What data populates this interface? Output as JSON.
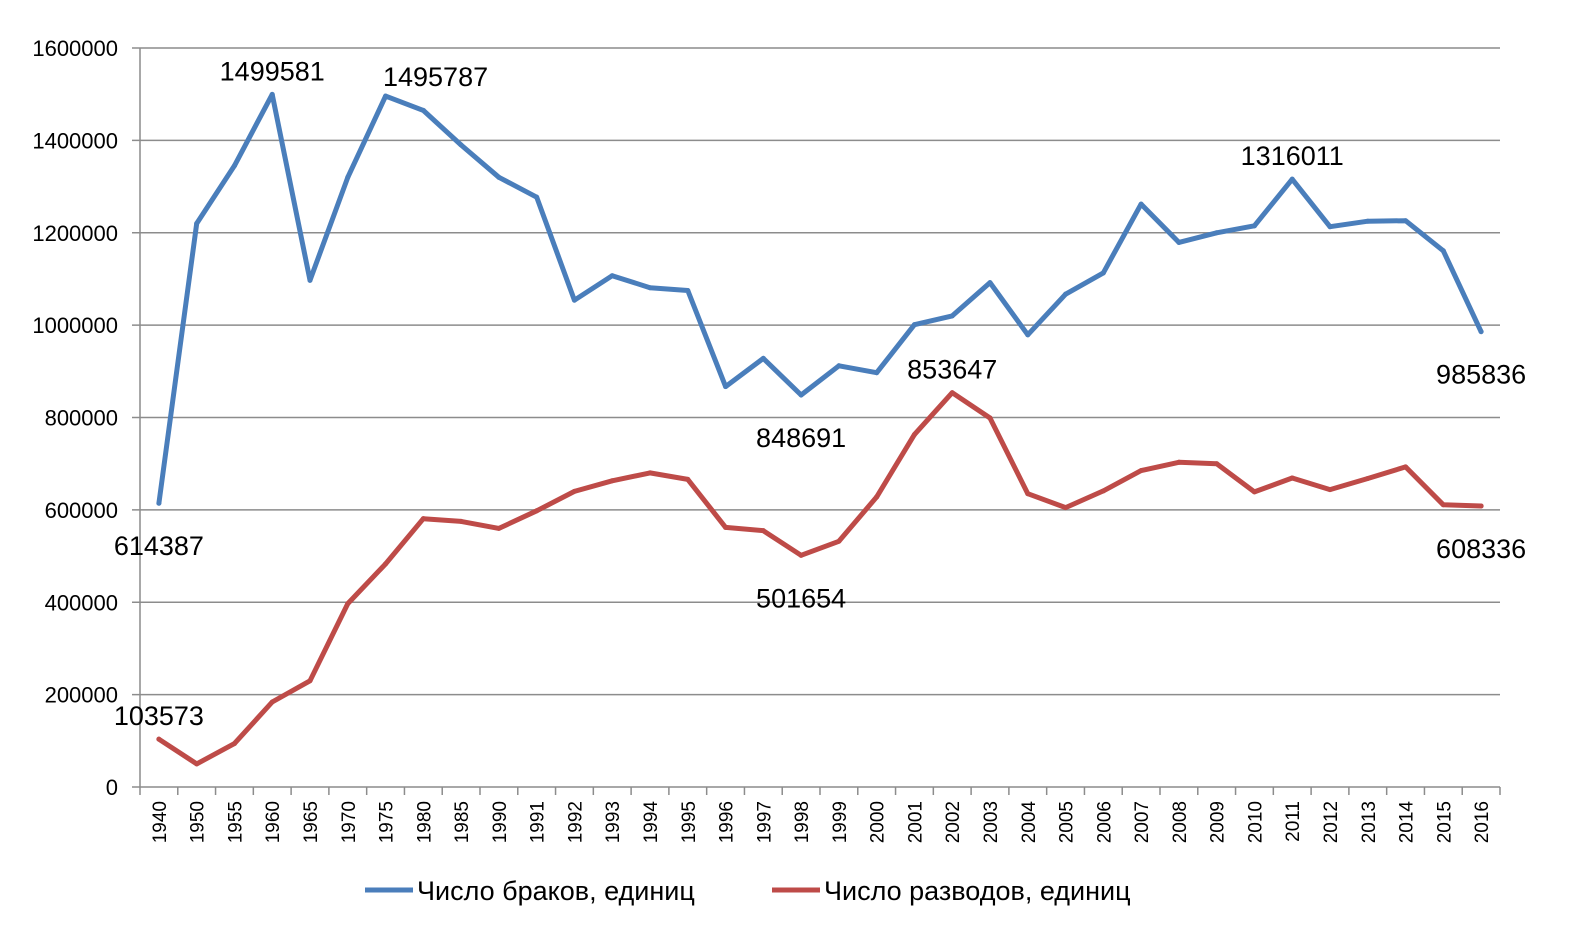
{
  "chart_data": {
    "type": "line",
    "title": "",
    "xlabel": "",
    "ylabel": "",
    "ylim": [
      0,
      1600000
    ],
    "yticks": [
      "0",
      "200000",
      "400000",
      "600000",
      "800000",
      "1000000",
      "1200000",
      "1400000",
      "1600000"
    ],
    "grid": "horizontal",
    "legend_position": "bottom",
    "categories": [
      "1940",
      "1950",
      "1955",
      "1960",
      "1965",
      "1970",
      "1975",
      "1980",
      "1985",
      "1990",
      "1991",
      "1992",
      "1993",
      "1994",
      "1995",
      "1996",
      "1997",
      "1998",
      "1999",
      "2000",
      "2001",
      "2002",
      "2003",
      "2004",
      "2005",
      "2006",
      "2007",
      "2008",
      "2009",
      "2010",
      "2011",
      "2012",
      "2013",
      "2014",
      "2015",
      "2016"
    ],
    "series": [
      {
        "name": "Число браков, единиц",
        "color": "#4a7ebb",
        "values": [
          614387,
          1220000,
          1345000,
          1499581,
          1097000,
          1320000,
          1495787,
          1465000,
          1390000,
          1320000,
          1277000,
          1054000,
          1107000,
          1081000,
          1075000,
          867000,
          928000,
          848691,
          912000,
          897000,
          1001000,
          1020000,
          1092000,
          979000,
          1067000,
          1113000,
          1262000,
          1179000,
          1200000,
          1215000,
          1316011,
          1213000,
          1225000,
          1226000,
          1161000,
          985836
        ],
        "labels": [
          {
            "index": 0,
            "text": "614387",
            "pos": "below"
          },
          {
            "index": 3,
            "text": "1499581",
            "pos": "above"
          },
          {
            "index": 6,
            "text": "1495787",
            "pos": "above-right"
          },
          {
            "index": 17,
            "text": "848691",
            "pos": "below"
          },
          {
            "index": 30,
            "text": "1316011",
            "pos": "above"
          },
          {
            "index": 35,
            "text": "985836",
            "pos": "below"
          }
        ]
      },
      {
        "name": "Число разводов, единиц",
        "color": "#be4b48",
        "values": [
          103573,
          50000,
          94000,
          184000,
          230000,
          397000,
          483000,
          581000,
          575000,
          560000,
          598000,
          640000,
          663000,
          680000,
          666000,
          562000,
          555000,
          501654,
          532000,
          628000,
          763000,
          853647,
          799000,
          635000,
          605000,
          641000,
          685000,
          703000,
          700000,
          639000,
          669000,
          644000,
          668000,
          693000,
          611000,
          608336
        ],
        "labels": [
          {
            "index": 0,
            "text": "103573",
            "pos": "above"
          },
          {
            "index": 17,
            "text": "501654",
            "pos": "below"
          },
          {
            "index": 21,
            "text": "853647",
            "pos": "above"
          },
          {
            "index": 35,
            "text": "608336",
            "pos": "below"
          }
        ]
      }
    ]
  }
}
